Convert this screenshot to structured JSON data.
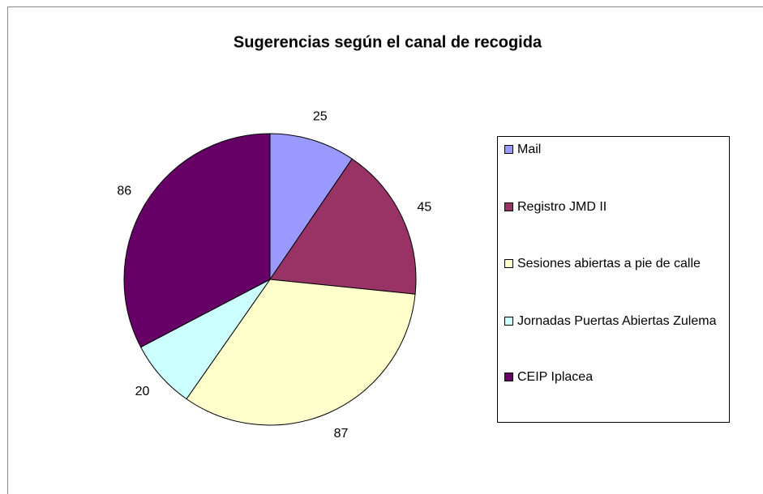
{
  "chart_data": {
    "type": "pie",
    "title": "Sugerencias según el canal de recogida",
    "categories": [
      "Mail",
      "Registro JMD II",
      "Sesiones abiertas a pie de calle",
      "Jornadas Puertas Abiertas Zulema",
      "CEIP Iplacea"
    ],
    "values": [
      25,
      45,
      87,
      20,
      86
    ],
    "colors": [
      "#9999ff",
      "#993366",
      "#ffffcc",
      "#ccffff",
      "#660066"
    ],
    "legend": "right"
  }
}
